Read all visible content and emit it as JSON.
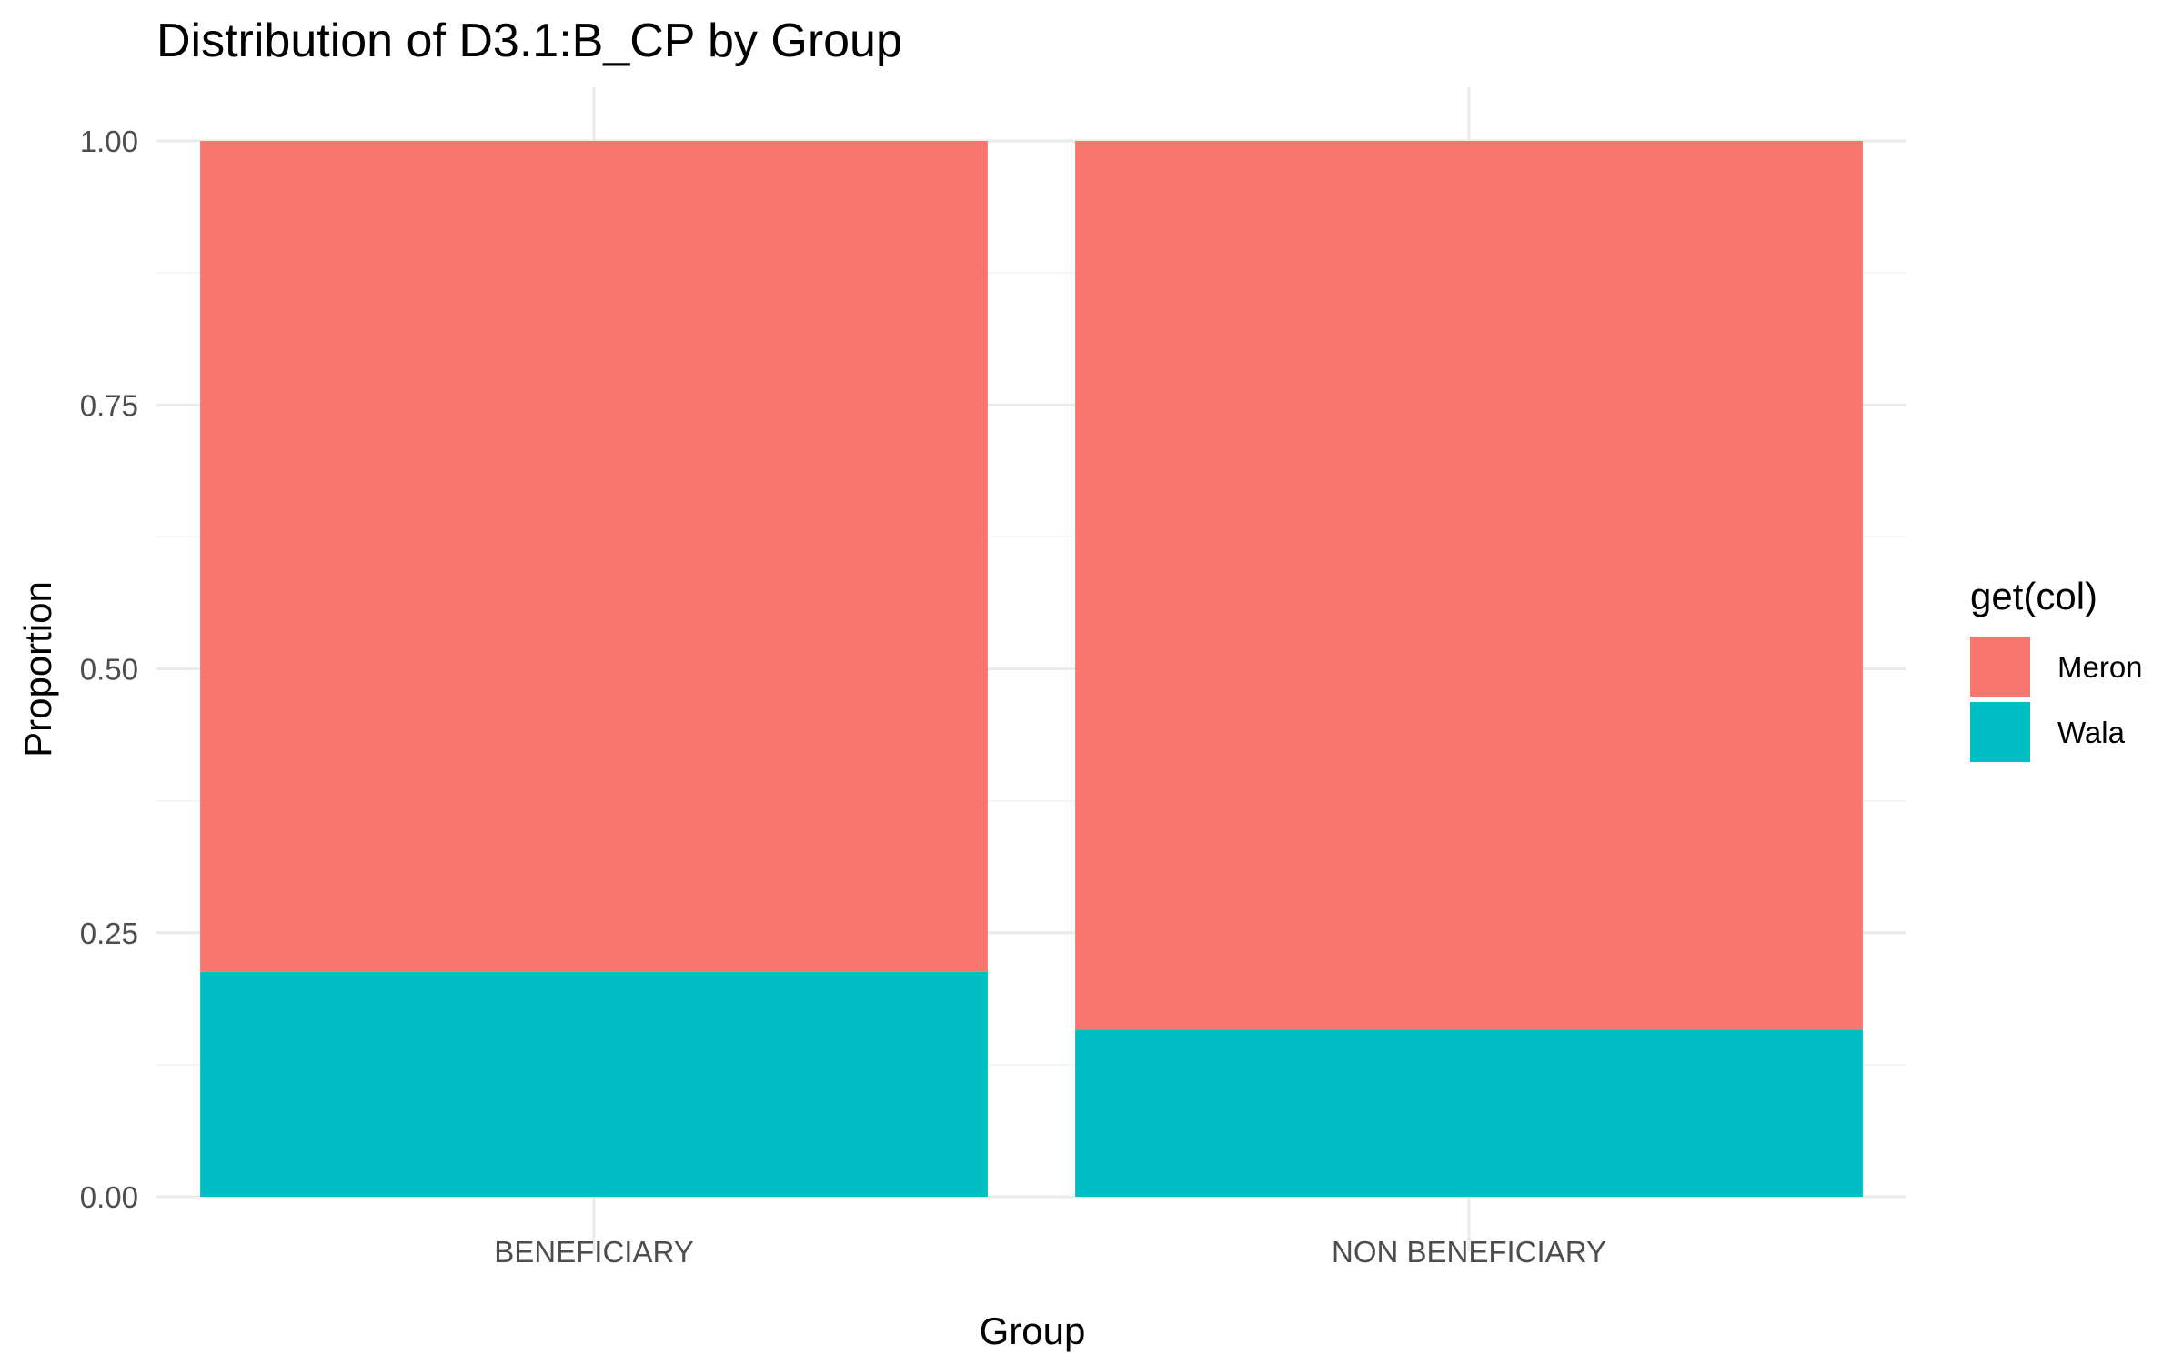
{
  "chart_data": {
    "type": "bar",
    "stacked": true,
    "title": "Distribution of D3.1:B_CP by Group",
    "xlabel": "Group",
    "ylabel": "Proportion",
    "categories": [
      "BENEFICIARY",
      "NON BENEFICIARY"
    ],
    "series": [
      {
        "name": "Meron",
        "values": [
          0.787,
          0.842
        ],
        "color": "#F8766D"
      },
      {
        "name": "Wala",
        "values": [
          0.213,
          0.158
        ],
        "color": "#00BFC4"
      }
    ],
    "ylim": [
      0,
      1
    ],
    "yticks": [
      "0.00",
      "0.25",
      "0.50",
      "0.75",
      "1.00"
    ],
    "ytick_values": [
      0,
      0.25,
      0.5,
      0.75,
      1
    ],
    "grid": true,
    "legend": {
      "title": "get(col)",
      "position": "right"
    }
  }
}
